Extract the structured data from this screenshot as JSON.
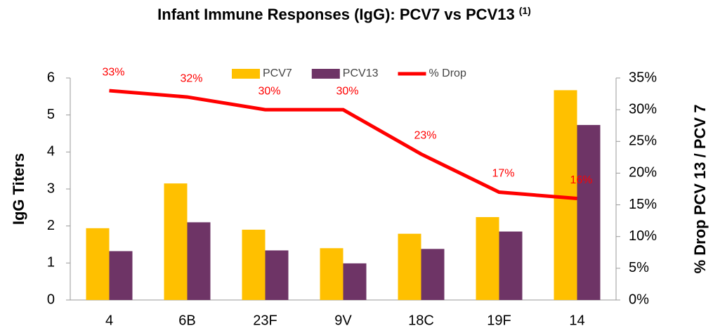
{
  "chart_data": {
    "type": "bar_line",
    "title": "Infant Immune Responses (IgG):  PCV7 vs PCV13",
    "title_note": "(1)",
    "y_label": "IgG Titers",
    "y2_label": "% Drop PCV 13 / PCV 7",
    "categories": [
      "4",
      "6B",
      "23F",
      "9V",
      "18C",
      "19F",
      "14"
    ],
    "series": [
      {
        "name": "PCV7",
        "type": "bar",
        "color": "#FFC000",
        "values": [
          1.94,
          3.15,
          1.9,
          1.4,
          1.79,
          2.24,
          5.67
        ]
      },
      {
        "name": "PCV13",
        "type": "bar",
        "color": "#6E3466",
        "values": [
          1.32,
          2.1,
          1.34,
          0.99,
          1.38,
          1.85,
          4.73
        ]
      },
      {
        "name": "% Drop",
        "type": "line",
        "axis": "y2",
        "color": "#FF0000",
        "values": [
          33,
          32,
          30,
          30,
          23,
          17,
          16
        ],
        "value_labels": [
          "33%",
          "32%",
          "30%",
          "30%",
          "23%",
          "17%",
          "16%"
        ]
      }
    ],
    "ylim": [
      0,
      6
    ],
    "yticks": [
      0,
      1,
      2,
      3,
      4,
      5,
      6
    ],
    "y2lim": [
      0,
      35
    ],
    "y2ticks": [
      {
        "value": 0,
        "label": "0%"
      },
      {
        "value": 5,
        "label": "5%"
      },
      {
        "value": 10,
        "label": "10%"
      },
      {
        "value": 15,
        "label": "15%"
      },
      {
        "value": 20,
        "label": "20%"
      },
      {
        "value": 25,
        "label": "25%"
      },
      {
        "value": 30,
        "label": "30%"
      },
      {
        "value": 35,
        "label": "35%"
      }
    ],
    "legend": "top",
    "grid": false
  }
}
